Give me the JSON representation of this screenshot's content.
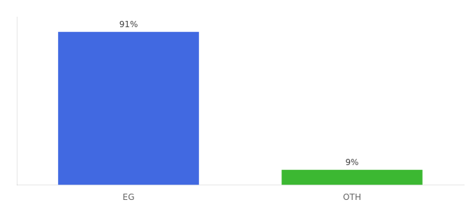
{
  "chart_data": {
    "type": "bar",
    "categories": [
      "EG",
      "OTH"
    ],
    "values": [
      91,
      9
    ],
    "value_labels": [
      "91%",
      "9%"
    ],
    "colors": [
      "#4169e1",
      "#3cb832"
    ],
    "ylim": [
      0,
      100
    ],
    "grid": false,
    "data_labels": true,
    "tick_labels": "x"
  }
}
